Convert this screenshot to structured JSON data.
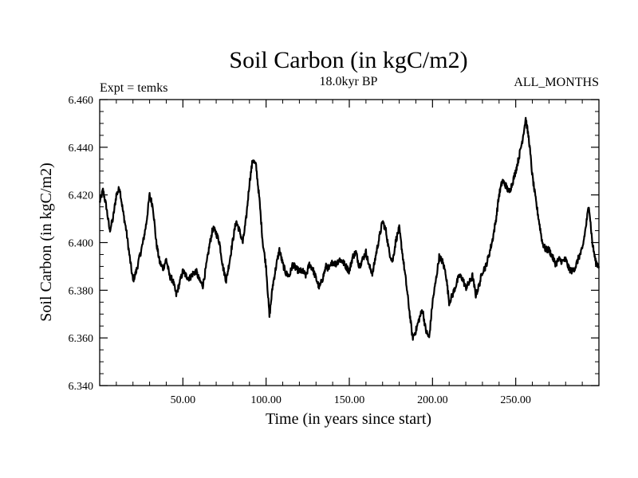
{
  "chart_data": {
    "type": "line",
    "title": "Soil Carbon (in kgC/m2)",
    "subtitle_left": "Expt = temks",
    "subtitle_center": "18.0kyr BP",
    "subtitle_right": "ALL_MONTHS",
    "xlabel": "Time (in years since start)",
    "ylabel": "Soil Carbon (in kgC/m2)",
    "xlim": [
      0,
      300
    ],
    "ylim": [
      6.34,
      6.46
    ],
    "x_ticks": [
      50,
      100,
      150,
      200,
      250
    ],
    "x_tick_labels": [
      "50.00",
      "100.00",
      "150.00",
      "200.00",
      "250.00"
    ],
    "y_ticks": [
      6.34,
      6.36,
      6.38,
      6.4,
      6.42,
      6.44,
      6.46
    ],
    "y_tick_labels": [
      "6.340",
      "6.360",
      "6.380",
      "6.400",
      "6.420",
      "6.440",
      "6.460"
    ],
    "grid": false,
    "series": [
      {
        "name": "Soil Carbon",
        "x": [
          0,
          2,
          4,
          6,
          8,
          10,
          12,
          14,
          16,
          18,
          20,
          22,
          24,
          26,
          28,
          30,
          32,
          34,
          36,
          38,
          40,
          42,
          44,
          46,
          48,
          50,
          52,
          54,
          56,
          58,
          60,
          62,
          64,
          66,
          68,
          70,
          72,
          74,
          76,
          78,
          80,
          82,
          84,
          86,
          88,
          90,
          92,
          94,
          96,
          98,
          100,
          102,
          104,
          106,
          108,
          110,
          112,
          114,
          116,
          118,
          120,
          122,
          124,
          126,
          128,
          130,
          132,
          134,
          136,
          138,
          140,
          142,
          144,
          146,
          148,
          150,
          152,
          154,
          156,
          158,
          160,
          162,
          164,
          166,
          168,
          170,
          172,
          174,
          176,
          178,
          180,
          182,
          184,
          186,
          188,
          190,
          192,
          194,
          196,
          198,
          200,
          202,
          204,
          206,
          208,
          210,
          212,
          214,
          216,
          218,
          220,
          222,
          224,
          226,
          228,
          230,
          232,
          234,
          236,
          238,
          240,
          242,
          244,
          246,
          248,
          250,
          252,
          254,
          256,
          258,
          260,
          262,
          264,
          266,
          268,
          270,
          272,
          274,
          276,
          278,
          280,
          282,
          284,
          286,
          288,
          290,
          292,
          294,
          296,
          298,
          300
        ],
        "values": [
          6.417,
          6.422,
          6.415,
          6.405,
          6.41,
          6.42,
          6.423,
          6.413,
          6.405,
          6.394,
          6.384,
          6.388,
          6.394,
          6.4,
          6.408,
          6.42,
          6.415,
          6.4,
          6.392,
          6.389,
          6.393,
          6.386,
          6.384,
          6.378,
          6.383,
          6.388,
          6.386,
          6.385,
          6.387,
          6.388,
          6.384,
          6.382,
          6.39,
          6.399,
          6.406,
          6.404,
          6.4,
          6.39,
          6.384,
          6.392,
          6.401,
          6.409,
          6.405,
          6.4,
          6.41,
          6.425,
          6.435,
          6.432,
          6.418,
          6.4,
          6.39,
          6.369,
          6.382,
          6.39,
          6.397,
          6.391,
          6.387,
          6.386,
          6.391,
          6.389,
          6.388,
          6.388,
          6.386,
          6.391,
          6.389,
          6.385,
          6.381,
          6.385,
          6.39,
          6.389,
          6.392,
          6.391,
          6.393,
          6.392,
          6.39,
          6.388,
          6.394,
          6.396,
          6.39,
          6.393,
          6.396,
          6.39,
          6.387,
          6.395,
          6.402,
          6.409,
          6.405,
          6.396,
          6.392,
          6.401,
          6.406,
          6.395,
          6.384,
          6.372,
          6.36,
          6.363,
          6.368,
          6.372,
          6.363,
          6.36,
          6.375,
          6.384,
          6.394,
          6.392,
          6.387,
          6.375,
          6.378,
          6.382,
          6.386,
          6.385,
          6.381,
          6.383,
          6.386,
          6.378,
          6.382,
          6.388,
          6.39,
          6.395,
          6.401,
          6.409,
          6.42,
          6.426,
          6.424,
          6.421,
          6.425,
          6.43,
          6.436,
          6.443,
          6.452,
          6.443,
          6.428,
          6.418,
          6.409,
          6.4,
          6.397,
          6.397,
          6.394,
          6.391,
          6.393,
          6.392,
          6.393,
          6.389,
          6.388,
          6.39,
          6.394,
          6.397,
          6.406,
          6.416,
          6.4,
          6.392,
          6.39
        ]
      }
    ]
  }
}
